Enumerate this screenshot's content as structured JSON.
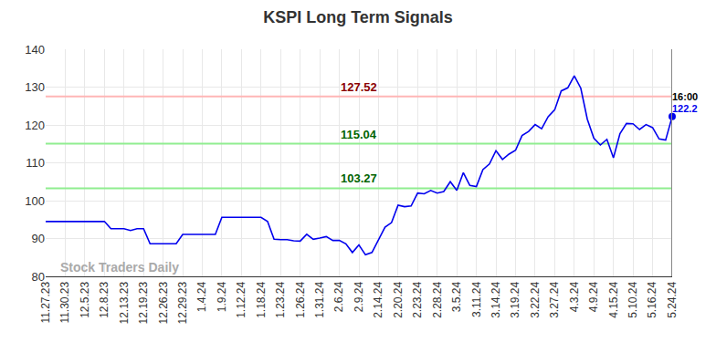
{
  "chart_data": {
    "type": "line",
    "title": "KSPI Long Term Signals",
    "categories": [
      "11.27.23",
      null,
      null,
      "11.30.23",
      null,
      null,
      "12.5.23",
      null,
      null,
      "12.8.23",
      null,
      null,
      "12.13.23",
      null,
      null,
      "12.19.23",
      null,
      null,
      "12.26.23",
      null,
      null,
      "12.29.23",
      null,
      null,
      "1.4.24",
      null,
      null,
      "1.9.24",
      null,
      null,
      "1.12.24",
      null,
      null,
      "1.18.24",
      null,
      null,
      "1.23.24",
      null,
      null,
      "1.26.24",
      null,
      null,
      "1.31.24",
      null,
      null,
      "2.6.24",
      null,
      null,
      "2.9.24",
      null,
      null,
      "2.14.24",
      null,
      null,
      "2.20.24",
      null,
      null,
      "2.23.24",
      null,
      null,
      "2.28.24",
      null,
      null,
      "3.5.24",
      null,
      null,
      "3.11.24",
      null,
      null,
      "3.14.24",
      null,
      null,
      "3.19.24",
      null,
      null,
      "3.22.24",
      null,
      null,
      "3.27.24",
      null,
      null,
      "4.3.24",
      null,
      null,
      "4.9.24",
      null,
      null,
      "4.15.24",
      null,
      null,
      "5.10.24",
      null,
      null,
      "5.16.24",
      null,
      null,
      "5.24.24"
    ],
    "values": [
      94.5,
      94.5,
      94.5,
      94.5,
      94.5,
      94.5,
      94.5,
      94.5,
      94.5,
      94.5,
      92.6,
      92.6,
      92.6,
      92.1,
      92.6,
      92.6,
      88.6,
      88.6,
      88.6,
      88.6,
      88.6,
      91.1,
      91.1,
      91.1,
      91.1,
      91.1,
      91.1,
      95.6,
      95.6,
      95.6,
      95.6,
      95.6,
      95.6,
      95.6,
      94.5,
      89.8,
      89.7,
      89.7,
      89.4,
      89.3,
      91.1,
      89.8,
      90.1,
      90.5,
      89.5,
      89.5,
      88.6,
      86.3,
      88.3,
      85.7,
      86.3,
      89.5,
      93,
      94.2,
      98.8,
      98.4,
      98.6,
      102,
      101.8,
      102.7,
      102,
      102.4,
      105,
      102.7,
      107.4,
      104,
      103.7,
      108.2,
      109.7,
      113.2,
      110.9,
      112.3,
      113.3,
      117.2,
      118.3,
      120.1,
      119,
      122.2,
      124,
      129,
      129.8,
      133,
      129.7,
      121.5,
      116.5,
      114.7,
      116.2,
      111.3,
      117.7,
      120.4,
      120.3,
      118.8,
      120.1,
      119.3,
      116.3,
      116,
      122.2
    ],
    "color": "#0000ee",
    "marker": "last",
    "ylim": [
      80,
      140
    ],
    "yticks": [
      80,
      90,
      100,
      110,
      120,
      130,
      140
    ],
    "grid": true,
    "levels": [
      {
        "value": 127.52,
        "color": "#ffb6b6",
        "label_color": "#8b0000"
      },
      {
        "value": 115.04,
        "color": "#90ee90",
        "label_color": "#006400"
      },
      {
        "value": 103.27,
        "color": "#90ee90",
        "label_color": "#006400"
      }
    ],
    "last_time": "16:00",
    "last_value_label": "122.2",
    "watermark": "Stock Traders Daily"
  }
}
